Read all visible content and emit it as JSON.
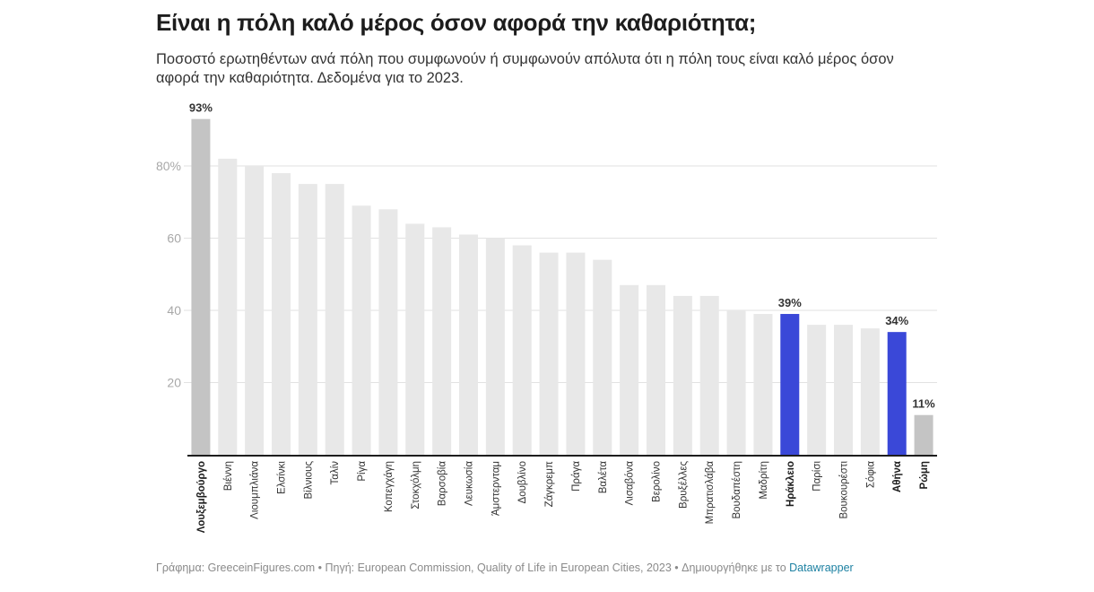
{
  "header": {
    "title": "Είναι η πόλη καλό μέρος όσον αφορά την καθαριότητα;",
    "subtitle": "Ποσοστό ερωτηθέντων ανά πόλη που συμφωνούν ή συμφωνούν απόλυτα ότι η πόλη τους είναι καλό μέρος όσον αφορά την καθαριότητα. Δεδομένα για το 2023."
  },
  "footer": {
    "text": "Γράφημα: GreeceinFigures.com • Πηγή: European Commission, Quality of Life in European Cities, 2023 • Δημιουργήθηκε με το ",
    "link": "Datawrapper"
  },
  "colors": {
    "default_bar": "#e8e8e8",
    "highlight_gray": "#c4c4c4",
    "highlight_blue": "#3a48d8",
    "gridline": "#e2e2e2",
    "baseline": "#1d1d1d"
  },
  "chart_data": {
    "type": "bar",
    "title": "Είναι η πόλη καλό μέρος όσον αφορά την καθαριότητα;",
    "xlabel": "",
    "ylabel": "",
    "ylim": [
      0,
      93
    ],
    "grid": true,
    "y_ticks": [
      {
        "value": 20,
        "label": "20"
      },
      {
        "value": 40,
        "label": "40"
      },
      {
        "value": 60,
        "label": "60"
      },
      {
        "value": 80,
        "label": "80%"
      }
    ],
    "categories": [
      "Λουξεμβούργο",
      "Βιέννη",
      "Λιουμπλιάνα",
      "Ελσίνκι",
      "Βίλνιους",
      "Ταλίν",
      "Ρίγα",
      "Κοπεγχάγη",
      "Στοκχόλμη",
      "Βαρσοβία",
      "Λευκωσία",
      "Άμστερνταμ",
      "Δουβλίνο",
      "Ζάγκρεμπ",
      "Πράγα",
      "Βαλέτα",
      "Λισαβόνα",
      "Βερολίνο",
      "Βρυξέλλες",
      "Μπρατισλάβα",
      "Βουδαπέστη",
      "Μαδρίτη",
      "Ηράκλειο",
      "Παρίσι",
      "Βουκουρέστι",
      "Σόφια",
      "Αθήνα",
      "Ρώμη"
    ],
    "values": [
      93,
      82,
      80,
      78,
      75,
      75,
      69,
      68,
      64,
      63,
      61,
      60,
      58,
      56,
      56,
      54,
      47,
      47,
      44,
      44,
      40,
      39,
      39,
      36,
      36,
      35,
      34,
      11
    ],
    "highlight": [
      "gray",
      "none",
      "none",
      "none",
      "none",
      "none",
      "none",
      "none",
      "none",
      "none",
      "none",
      "none",
      "none",
      "none",
      "none",
      "none",
      "none",
      "none",
      "none",
      "none",
      "none",
      "none",
      "blue",
      "none",
      "none",
      "none",
      "blue",
      "gray"
    ],
    "data_labels": [
      {
        "index": 0,
        "label": "93%"
      },
      {
        "index": 22,
        "label": "39%"
      },
      {
        "index": 26,
        "label": "34%"
      },
      {
        "index": 27,
        "label": "11%"
      }
    ]
  }
}
